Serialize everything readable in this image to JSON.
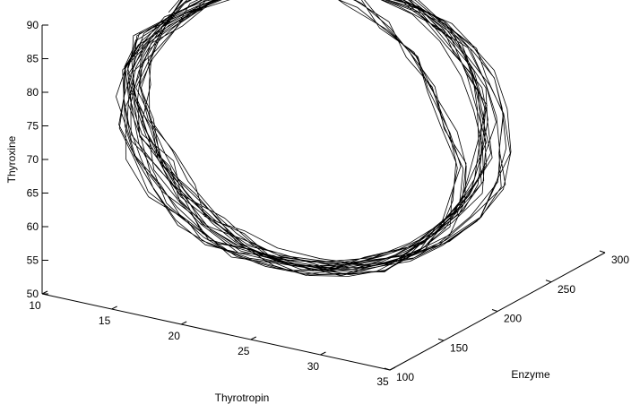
{
  "chart_data": {
    "type": "line",
    "projection": "3d",
    "title": "",
    "xlabel": "Thyrotropin",
    "ylabel": "Enzyme",
    "zlabel": "Thyroxine",
    "xlim": [
      10,
      35
    ],
    "ylim": [
      100,
      300
    ],
    "zlim": [
      50,
      90
    ],
    "xticks": [
      "10",
      "15",
      "20",
      "25",
      "30",
      "35"
    ],
    "yticks": [
      "100",
      "150",
      "200",
      "250",
      "300"
    ],
    "zticks": [
      "50",
      "55",
      "60",
      "65",
      "70",
      "75",
      "80",
      "85",
      "90"
    ],
    "grid": false,
    "colors": {
      "line": "#000000",
      "axes": "#000000",
      "background": "#ffffff"
    },
    "series": [
      {
        "description": "Quasi-periodic closed-loop trajectory",
        "x": [
          10.6,
          11.2,
          12.4,
          14.0,
          15.8,
          17.6,
          19.4,
          21.2,
          23.2,
          25.4,
          27.4,
          29.2,
          30.6,
          31.6,
          31.8,
          31.4,
          30.4,
          29.0,
          27.4,
          25.6,
          23.4,
          21.2,
          19.0,
          17.0,
          15.0,
          13.2,
          12.0,
          11.2,
          10.8,
          11.0,
          11.8,
          13.2,
          15.0,
          17.0,
          19.2,
          21.4,
          23.6,
          25.8,
          27.8,
          29.6,
          30.8,
          31.4,
          31.2,
          30.4,
          29.0,
          27.2,
          25.2,
          23.0,
          20.8,
          18.6,
          16.6,
          14.6,
          13.0,
          11.8,
          11.0,
          10.8,
          11.4,
          12.6,
          14.4,
          16.4,
          18.6,
          20.8,
          23.0,
          25.2,
          27.2,
          29.0,
          30.4,
          31.2,
          31.4,
          30.8,
          29.6,
          28.0,
          26.0,
          23.8,
          21.6,
          19.4,
          17.2,
          15.2,
          13.4,
          12.0,
          11.2,
          11.0,
          11.6,
          12.8,
          14.6,
          16.6,
          18.8,
          21.0,
          23.2,
          25.4,
          27.4,
          29.2,
          30.4,
          31.0,
          30.8,
          29.8,
          28.2,
          26.2,
          24.0,
          21.8,
          19.6,
          17.4,
          15.4,
          13.6,
          12.2,
          11.4,
          11.2
        ],
        "y": [
          178,
          166,
          155,
          146,
          140,
          137,
          138,
          143,
          151,
          162,
          176,
          192,
          209,
          226,
          242,
          256,
          267,
          274,
          277,
          276,
          271,
          262,
          250,
          236,
          221,
          206,
          192,
          180,
          170,
          161,
          153,
          146,
          141,
          138,
          139,
          144,
          152,
          163,
          177,
          193,
          209,
          225,
          240,
          253,
          263,
          270,
          273,
          272,
          267,
          258,
          246,
          232,
          217,
          202,
          189,
          177,
          166,
          156,
          148,
          142,
          139,
          140,
          145,
          153,
          165,
          179,
          195,
          211,
          227,
          242,
          254,
          264,
          270,
          272,
          270,
          264,
          254,
          241,
          227,
          212,
          198,
          185,
          173,
          163,
          154,
          147,
          142,
          140,
          142,
          148,
          157,
          169,
          184,
          200,
          216,
          231,
          245,
          256,
          264,
          268,
          268,
          264,
          256,
          245,
          232,
          218,
          204
        ],
        "z": [
          82.0,
          78.5,
          75.0,
          71.5,
          68.0,
          64.5,
          61.5,
          59.0,
          57.0,
          56.0,
          55.5,
          56.0,
          57.5,
          60.0,
          63.5,
          67.5,
          71.5,
          75.5,
          79.0,
          82.0,
          84.5,
          86.0,
          87.0,
          87.2,
          86.8,
          85.5,
          83.5,
          81.0,
          78.0,
          74.5,
          71.0,
          67.5,
          64.0,
          61.0,
          58.5,
          56.8,
          55.8,
          55.6,
          56.3,
          58.0,
          60.5,
          63.8,
          67.5,
          71.5,
          75.5,
          79.0,
          82.0,
          84.5,
          86.2,
          87.0,
          87.0,
          86.2,
          84.6,
          82.4,
          79.6,
          76.4,
          73.0,
          69.5,
          66.0,
          62.8,
          60.0,
          57.8,
          56.3,
          55.7,
          56.0,
          57.2,
          59.3,
          62.2,
          65.6,
          69.4,
          73.2,
          77.0,
          80.4,
          83.3,
          85.5,
          86.9,
          87.4,
          87.0,
          85.8,
          83.9,
          81.4,
          78.4,
          75.1,
          71.6,
          68.1,
          64.8,
          61.8,
          59.3,
          57.5,
          56.4,
          56.1,
          56.6,
          58.0,
          60.2,
          63.1,
          66.5,
          70.2,
          74.0,
          77.6,
          80.8,
          83.5,
          85.5,
          86.7,
          87.0,
          86.4,
          85.0,
          82.8
        ]
      }
    ]
  }
}
